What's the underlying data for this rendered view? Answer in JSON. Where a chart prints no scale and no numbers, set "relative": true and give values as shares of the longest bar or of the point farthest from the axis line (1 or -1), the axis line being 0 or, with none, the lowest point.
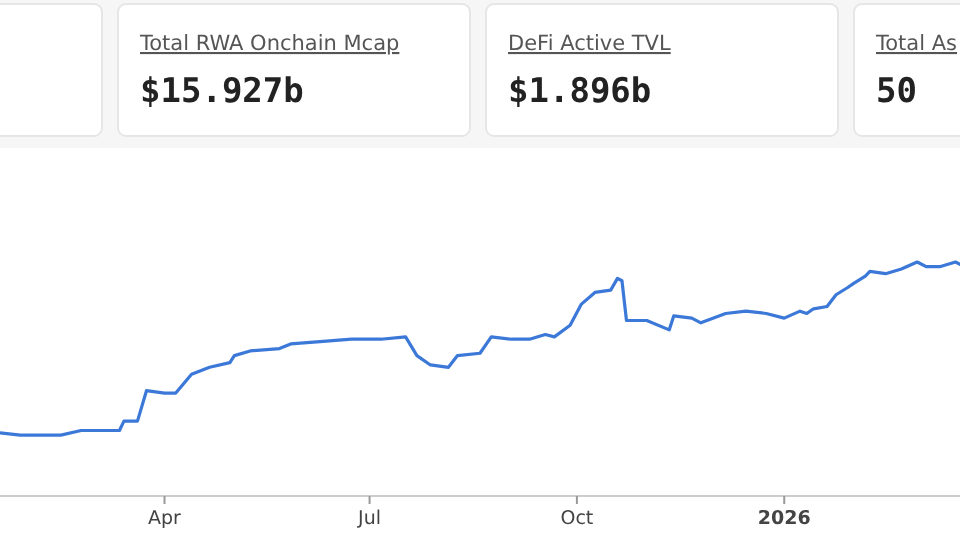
{
  "chart_data": [
    {
      "type": "other",
      "title": "Total RWA Onchain Mcap",
      "subtitle": "$15.927b"
    },
    {
      "type": "other",
      "title": "DeFi Active TVL",
      "subtitle": "$1.896b"
    },
    {
      "type": "other",
      "title": "Total As",
      "subtitle": "50"
    },
    {
      "type": "line",
      "relative": true,
      "marker": "none",
      "line_style": "solid",
      "xlim": [
        "2025-01-18",
        "2026-03-20"
      ],
      "xticks": [
        {
          "value": "2025-04-01",
          "label": "Apr"
        },
        {
          "value": "2025-07-01",
          "label": "Jul"
        },
        {
          "value": "2025-10-01",
          "label": "Oct"
        },
        {
          "value": "2026-01-01",
          "label": "2026"
        }
      ],
      "series": [
        {
          "color": "#3b78d8",
          "x": [
            "2025-01-18",
            "2025-01-27",
            "2025-02-14",
            "2025-02-23",
            "2025-03-12",
            "2025-03-14",
            "2025-03-20",
            "2025-03-24",
            "2025-04-01",
            "2025-04-06",
            "2025-04-13",
            "2025-04-21",
            "2025-04-30",
            "2025-05-02",
            "2025-05-09",
            "2025-05-22",
            "2025-05-27",
            "2025-06-09",
            "2025-06-23",
            "2025-07-06",
            "2025-07-17",
            "2025-07-22",
            "2025-07-28",
            "2025-08-05",
            "2025-08-09",
            "2025-08-19",
            "2025-08-24",
            "2025-09-02",
            "2025-09-10",
            "2025-09-17",
            "2025-09-21",
            "2025-09-28",
            "2025-10-03",
            "2025-10-09",
            "2025-10-16",
            "2025-10-19",
            "2025-10-21",
            "2025-10-23",
            "2025-11-01",
            "2025-11-11",
            "2025-11-13",
            "2025-11-21",
            "2025-11-25",
            "2025-12-06",
            "2025-12-15",
            "2025-12-24",
            "2026-01-01",
            "2026-01-08",
            "2026-01-11",
            "2026-01-14",
            "2026-01-20",
            "2026-01-24",
            "2026-01-29",
            "2026-02-01",
            "2026-02-06",
            "2026-02-08",
            "2026-02-15",
            "2026-02-22",
            "2026-03-01",
            "2026-03-05",
            "2026-03-11",
            "2026-03-18",
            "2026-03-20"
          ],
          "values": [
            0.27,
            0.26,
            0.26,
            0.28,
            0.28,
            0.32,
            0.32,
            0.45,
            0.44,
            0.44,
            0.52,
            0.55,
            0.57,
            0.6,
            0.62,
            0.63,
            0.65,
            0.66,
            0.67,
            0.67,
            0.68,
            0.6,
            0.56,
            0.55,
            0.6,
            0.61,
            0.68,
            0.67,
            0.67,
            0.69,
            0.68,
            0.73,
            0.82,
            0.87,
            0.88,
            0.93,
            0.92,
            0.75,
            0.75,
            0.71,
            0.77,
            0.76,
            0.74,
            0.78,
            0.79,
            0.78,
            0.76,
            0.79,
            0.78,
            0.8,
            0.81,
            0.86,
            0.89,
            0.91,
            0.94,
            0.96,
            0.95,
            0.97,
            1,
            0.98,
            0.98,
            1,
            0.99
          ]
        }
      ]
    }
  ]
}
